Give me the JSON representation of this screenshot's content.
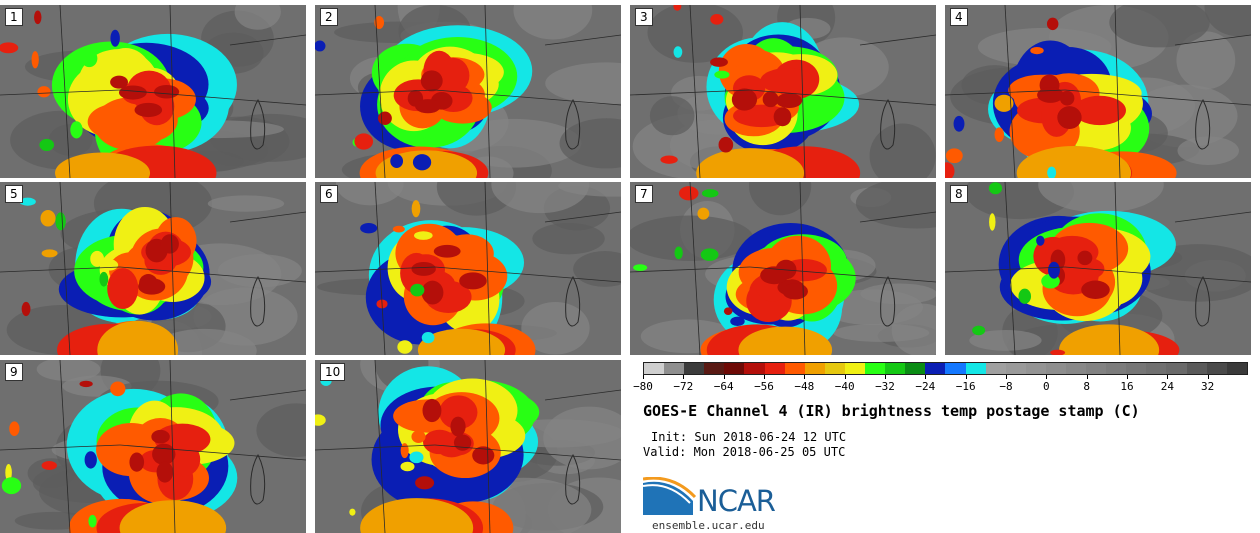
{
  "panels": [
    {
      "label": "1"
    },
    {
      "label": "2"
    },
    {
      "label": "3"
    },
    {
      "label": "4"
    },
    {
      "label": "5"
    },
    {
      "label": "6"
    },
    {
      "label": "7"
    },
    {
      "label": "8"
    },
    {
      "label": "9"
    },
    {
      "label": "10"
    }
  ],
  "colorbar": {
    "ticks": [
      "−80",
      "−72",
      "−64",
      "−56",
      "−48",
      "−40",
      "−32",
      "−24",
      "−16",
      "−8",
      "0",
      "8",
      "16",
      "24",
      "32"
    ],
    "range": [
      -80,
      40
    ],
    "colors": [
      "#cfcfcf",
      "#8f8f8f",
      "#3c3c3c",
      "#5a1a14",
      "#6e0a06",
      "#b40f0a",
      "#e6200f",
      "#ff5a00",
      "#f0a000",
      "#e6c80f",
      "#f0f014",
      "#28ff14",
      "#14c814",
      "#0a8c14",
      "#0a1eb4",
      "#1478ff",
      "#14e6e6",
      "#a0a0a0",
      "#9a9a9a",
      "#949494",
      "#8e8e8e",
      "#888888",
      "#828282",
      "#7c7c7c",
      "#767676",
      "#707070",
      "#6a6a6a",
      "#5a5a5a",
      "#4a4a4a",
      "#3a3a3a"
    ]
  },
  "title": "GOES-E Channel 4 (IR) brightness temp postage stamp (C)",
  "init_text": "Init: Sun 2018-06-24 12 UTC",
  "valid_text": "Valid: Mon 2018-06-25 05 UTC",
  "logo_text": "NCAR",
  "site": "ensemble.ucar.edu"
}
